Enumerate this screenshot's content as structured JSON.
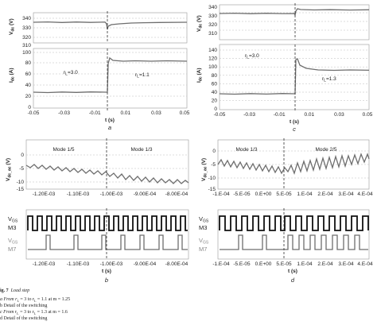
{
  "chart_data": [
    {
      "id": "a-top",
      "type": "line",
      "ylabel": "V_dc (V)",
      "yticks": [
        "340",
        "330",
        "320",
        "310"
      ],
      "ylim": [
        310,
        340
      ],
      "xticks": [
        "-0.05",
        "-0.03",
        "-0.01",
        "0.01",
        "0.03",
        "0.05"
      ],
      "xlim": [
        -0.05,
        0.05
      ],
      "series": [
        {
          "values": [
            [
              -0.05,
              331
            ],
            [
              -0.005,
              330.8
            ],
            [
              -0.001,
              328
            ],
            [
              0,
              322
            ],
            [
              0.003,
              326
            ],
            [
              0.01,
              328
            ],
            [
              0.03,
              330
            ],
            [
              0.05,
              330.5
            ]
          ]
        }
      ]
    },
    {
      "id": "a-bottom",
      "type": "line",
      "ylabel": "I_dc (A)",
      "yticks": [
        "100",
        "80",
        "60",
        "40",
        "20",
        "0"
      ],
      "ylim": [
        0,
        100
      ],
      "xticks": [
        "-0.05",
        "-0.03",
        "-0.01",
        "0.01",
        "0.03",
        "0.05"
      ],
      "xlim": [
        -0.05,
        0.05
      ],
      "xlabel": "t (s)",
      "sublabel": "a",
      "annotations": [
        "r_L=3.0",
        "r_L=1.1"
      ],
      "series": [
        {
          "values": [
            [
              -0.05,
              32
            ],
            [
              -0.001,
              32
            ],
            [
              0,
              78
            ],
            [
              0.002,
              85
            ],
            [
              0.05,
              80
            ]
          ]
        }
      ]
    },
    {
      "id": "c-top",
      "type": "line",
      "ylabel": "V_dc (V)",
      "yticks": [
        "340",
        "330",
        "320",
        "310"
      ],
      "ylim": [
        310,
        340
      ],
      "xticks": [
        "-0.05",
        "-0.03",
        "-0.01",
        "0.01",
        "0.03",
        "0.05"
      ],
      "xlim": [
        -0.05,
        0.05
      ],
      "series": [
        {
          "values": [
            [
              -0.05,
              331
            ],
            [
              -0.001,
              330.5
            ],
            [
              0,
              328
            ],
            [
              0.002,
              334
            ],
            [
              0.05,
              333
            ]
          ]
        }
      ]
    },
    {
      "id": "c-bottom",
      "type": "line",
      "ylabel": "I_dc (A)",
      "yticks": [
        "140",
        "120",
        "100",
        "80",
        "60",
        "40",
        "20",
        "0"
      ],
      "ylim": [
        0,
        140
      ],
      "xticks": [
        "-0.05",
        "-0.03",
        "-0.01",
        "0.01",
        "0.03",
        "0.05"
      ],
      "xlim": [
        -0.05,
        0.05
      ],
      "xlabel": "t (s)",
      "sublabel": "c",
      "annotations": [
        "r_L=3.0",
        "r_L=1.3"
      ],
      "series": [
        {
          "values": [
            [
              -0.05,
              37
            ],
            [
              -0.001,
              37
            ],
            [
              0,
              118
            ],
            [
              0.003,
              105
            ],
            [
              0.05,
              100
            ]
          ]
        }
      ]
    },
    {
      "id": "b-top",
      "type": "line",
      "ylabel": "V_dc_ac (V)",
      "yticks": [
        "0",
        "-5",
        "-10",
        "-15"
      ],
      "ylim": [
        -15,
        0
      ],
      "xticks": [
        "-1.20E-03",
        "-1.10E-03",
        "-1.00E-03",
        "-9.00E-04",
        "-8.00E-04"
      ],
      "xlim": [
        -0.00125,
        -0.00075
      ],
      "annotations": [
        "Mode 1/5",
        "Mode 1/3"
      ],
      "series": [
        {
          "values": [
            [
              -0.00125,
              -5
            ],
            [
              -0.00105,
              -7.5
            ],
            [
              -0.001,
              -8
            ],
            [
              -0.0009,
              -9.5
            ],
            [
              -0.00075,
              -10
            ]
          ]
        }
      ]
    },
    {
      "id": "b-bottom",
      "type": "line",
      "xticks": [
        "-1.20E-03",
        "-1.10E-03",
        "-1.00E-03",
        "-9.00E-04",
        "-8.00E-04"
      ],
      "xlim": [
        -0.00125,
        -0.00075
      ],
      "xlabel": "t (s)",
      "sublabel": "b",
      "series": [
        {
          "name": "V_GS M3"
        },
        {
          "name": "V_GS M7"
        }
      ]
    },
    {
      "id": "d-top",
      "type": "line",
      "ylabel": "V_dc_ac (V)",
      "yticks": [
        "0",
        "-5",
        "-10",
        "-15"
      ],
      "ylim": [
        -15,
        0
      ],
      "xticks": [
        "-1.E-04",
        "-5.E-05",
        "0.E+00",
        "5.E-05",
        "1.E-04",
        "2.E-04",
        "3.E-04",
        "4.E-04"
      ],
      "xlim": [
        -0.000105,
        0.00045
      ],
      "annotations": [
        "Mode 1/3",
        "Mode 2/5"
      ],
      "series": [
        {
          "values": [
            [
              -0.000105,
              -5
            ],
            [
              0,
              -6
            ],
            [
              5e-05,
              -7.5
            ],
            [
              0.0001,
              -6
            ],
            [
              0.0002,
              -5
            ],
            [
              0.0003,
              -4
            ],
            [
              0.00045,
              -3
            ]
          ]
        }
      ]
    },
    {
      "id": "d-bottom",
      "type": "line",
      "xticks": [
        "-1.E-04",
        "-5.E-05",
        "0.E+00",
        "5.E-05",
        "1.E-04",
        "2.E-04",
        "3.E-04",
        "4.E-04"
      ],
      "xlim": [
        -0.000105,
        0.00045
      ],
      "xlabel": "t (s)",
      "sublabel": "d",
      "series": [
        {
          "name": "V_GS M3"
        },
        {
          "name": "V_GS M7"
        }
      ]
    }
  ],
  "labels": {
    "vdc": "V",
    "vdc_sub": "dc",
    "vdc_unit": " (V)",
    "idc": "I",
    "idc_sub": "dc",
    "idc_unit": " (A)",
    "vdcac": "V",
    "vdcac_sub": "dc_ac",
    "vdcac_unit": " (V)",
    "rl3": "r",
    "rl3_sub": "L",
    "rl3_val": "=3.0",
    "rl11_val": "=1.1",
    "rl13_val": "=1.3",
    "ts": "t (s)",
    "mode15": "Mode 1/5",
    "mode13": "Mode 1/3",
    "mode25": "Mode 2/5",
    "vgs": "V",
    "vgs_sub": "GS",
    "m3": "M3",
    "m7": "M7",
    "sub_a": "a",
    "sub_b": "b",
    "sub_c": "c",
    "sub_d": "d"
  },
  "caption": {
    "fig": "ig. 7",
    "title": "Load step",
    "line1": "a From r",
    "line1_rest": " = 3 to r",
    "line1_end": " = 1.1 at m = 1.25",
    "line2": "b Detail of the switching",
    "line3": "c From r",
    "line3_rest": " = 3 to r",
    "line3_end": " = 1.3 at m = 1.6",
    "line4": "d Detail of the switching"
  }
}
